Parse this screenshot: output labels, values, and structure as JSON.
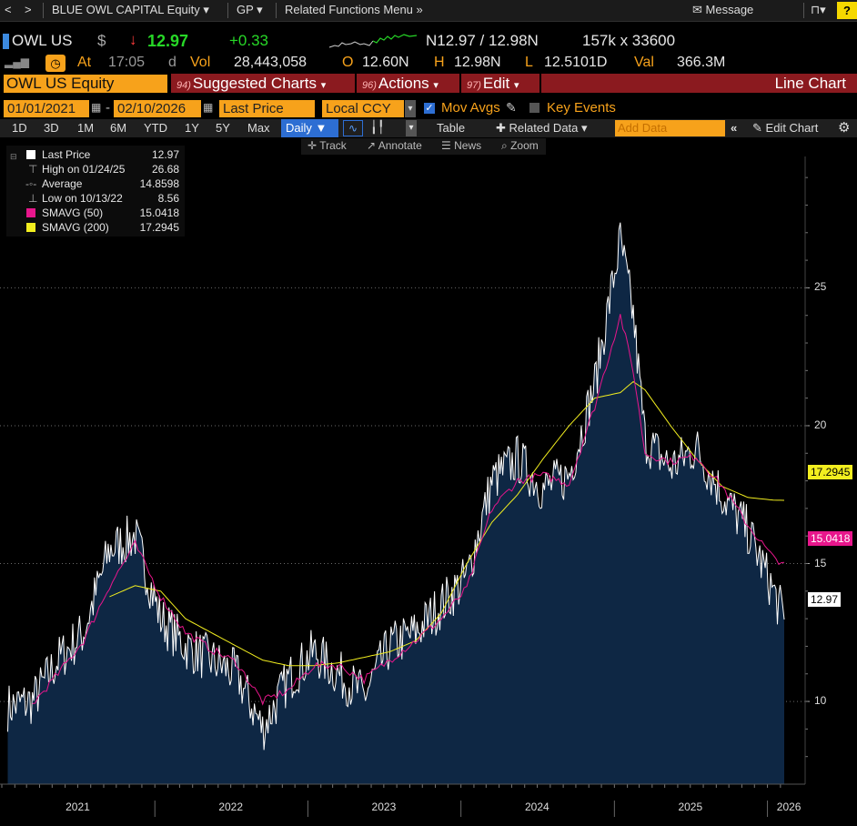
{
  "topbar": {
    "back": "<",
    "forward": ">",
    "security": "BLUE OWL CAPITAL Equity",
    "function": "GP",
    "related": "Related Functions Menu",
    "message": "Message",
    "help": "?"
  },
  "quote": {
    "ticker": "OWL US",
    "currency": "$",
    "arrow": "↓",
    "last": "12.97",
    "change": "+0.33",
    "bidask": "N12.97 / 12.98N",
    "size": "157k x 33600",
    "at": "At",
    "time": "17:05",
    "d": "d",
    "vol_label": "Vol",
    "vol": "28,443,058",
    "o_label": "O",
    "open": "12.60N",
    "h_label": "H",
    "high": "12.98N",
    "l_label": "L",
    "low": "12.5101D",
    "val_label": "Val",
    "val": "366.3M"
  },
  "command": {
    "security_field": "OWL US Equity",
    "suggested_num": "94)",
    "suggested": "Suggested Charts",
    "actions_num": "96)",
    "actions": "Actions",
    "edit_num": "97)",
    "edit": "Edit",
    "chart_type": "Line Chart"
  },
  "options": {
    "start_date": "01/01/2021",
    "end_date": "02/10/2026",
    "field": "Last Price",
    "ccy": "Local CCY",
    "mov_avgs": "Mov Avgs",
    "key_events": "Key Events"
  },
  "tabs": {
    "periods": [
      "1D",
      "3D",
      "1M",
      "6M",
      "YTD",
      "1Y",
      "5Y",
      "Max"
    ],
    "frequency": "Daily",
    "table": "Table",
    "related_data": "Related Data",
    "add_data_placeholder": "Add Data",
    "edit_chart": "Edit Chart"
  },
  "tools": [
    "Track",
    "Annotate",
    "News",
    "Zoom"
  ],
  "legend": {
    "last_price_label": "Last Price",
    "last_price": "12.97",
    "high_label": "High on 01/24/25",
    "high": "26.68",
    "avg_label": "Average",
    "avg": "14.8598",
    "low_label": "Low on 10/13/22",
    "low": "8.56",
    "sma50_label": "SMAVG (50)",
    "sma50": "15.0418",
    "sma200_label": "SMAVG (200)",
    "sma200": "17.2945"
  },
  "colors": {
    "amber": "#f7a21b",
    "price_line": "#ffffff",
    "price_fill": "#0e2744",
    "sma50": "#e8168c",
    "sma200": "#f2ee1f",
    "red_button": "#8b1a1f",
    "green": "#27d827"
  },
  "chart_data": {
    "type": "area",
    "x": [
      "2021-01",
      "2021-03",
      "2021-05",
      "2021-07",
      "2021-09",
      "2021-11",
      "2022-01",
      "2022-03",
      "2022-05",
      "2022-07",
      "2022-09",
      "2022-11",
      "2023-01",
      "2023-03",
      "2023-05",
      "2023-07",
      "2023-09",
      "2023-11",
      "2024-01",
      "2024-03",
      "2024-05",
      "2024-07",
      "2024-09",
      "2024-11",
      "2025-01",
      "2025-02",
      "2025-03",
      "2025-05",
      "2025-07",
      "2025-09",
      "2025-11",
      "2026-01",
      "2026-02-10"
    ],
    "series": [
      {
        "name": "Last Price",
        "values": [
          9.8,
          10.0,
          11.5,
          12.5,
          15.5,
          16.0,
          13.0,
          12.0,
          11.5,
          11.0,
          9.0,
          10.8,
          11.8,
          11.0,
          10.2,
          12.0,
          12.5,
          13.5,
          14.5,
          18.0,
          18.8,
          17.7,
          18.2,
          21.5,
          26.7,
          24.0,
          19.5,
          18.5,
          19.2,
          17.5,
          16.2,
          14.0,
          12.97
        ]
      },
      {
        "name": "SMAVG (50)",
        "values": [
          null,
          9.9,
          11.0,
          12.2,
          14.2,
          15.7,
          13.8,
          12.5,
          11.9,
          11.4,
          10.0,
          10.4,
          11.3,
          11.3,
          10.8,
          11.5,
          12.2,
          13.0,
          14.1,
          17.0,
          18.0,
          18.2,
          17.9,
          20.7,
          24.0,
          22.0,
          19.0,
          18.7,
          18.9,
          17.8,
          16.4,
          15.2,
          15.0418
        ]
      },
      {
        "name": "SMAVG (200)",
        "values": [
          null,
          null,
          null,
          null,
          13.8,
          14.2,
          14.0,
          13.0,
          12.5,
          12.0,
          11.5,
          11.3,
          11.3,
          11.4,
          11.6,
          11.8,
          12.2,
          13.2,
          15.0,
          16.5,
          17.5,
          18.8,
          20.0,
          21.0,
          21.2,
          21.6,
          21.3,
          20.0,
          18.8,
          17.8,
          17.4,
          17.3,
          17.2945
        ]
      }
    ],
    "ylim": [
      7.0,
      29.5
    ],
    "yticks": [
      10,
      15,
      20,
      25
    ],
    "xtick_labels": [
      "2021",
      "2022",
      "2023",
      "2024",
      "2025",
      "2026"
    ],
    "grid": true,
    "legend_position": "top-left"
  }
}
